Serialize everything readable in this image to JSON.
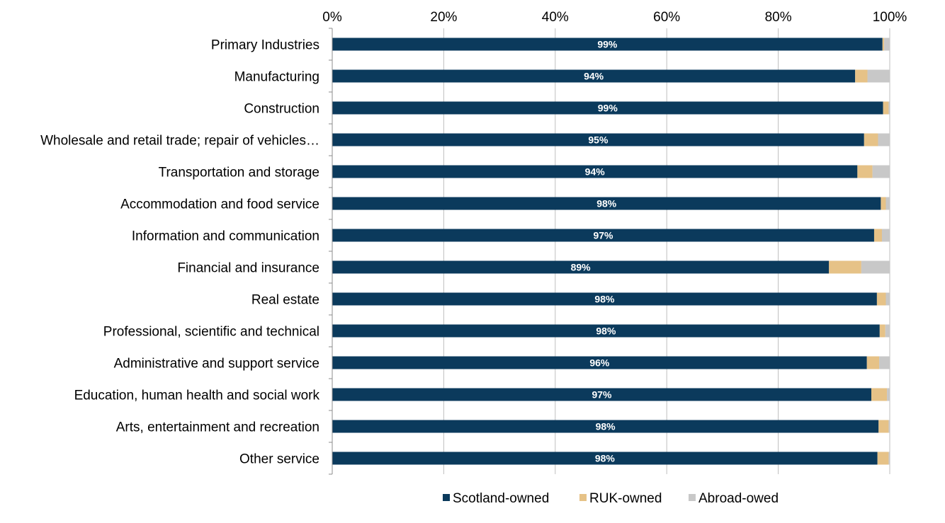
{
  "chart_data": {
    "type": "bar",
    "orientation": "horizontal",
    "stacked": "percent",
    "categories": [
      "Primary Industries",
      "Manufacturing",
      "Construction",
      "Wholesale and retail trade; repair of  vehicles…",
      "Transportation and storage",
      "Accommodation and food service",
      "Information and communication",
      "Financial and insurance",
      "Real estate",
      "Professional, scientific and technical",
      "Administrative and support service",
      "Education, human health and social work",
      "Arts, entertainment and recreation",
      "Other service"
    ],
    "series": [
      {
        "name": "Scotland-owned",
        "color": "#0b3a5c",
        "values": [
          98.7,
          93.8,
          98.8,
          95.4,
          94.2,
          98.4,
          97.2,
          89.1,
          97.7,
          98.2,
          95.9,
          96.7,
          98.0,
          97.8
        ],
        "data_labels": [
          "99%",
          "94%",
          "99%",
          "95%",
          "94%",
          "98%",
          "97%",
          "89%",
          "98%",
          "98%",
          "96%",
          "97%",
          "98%",
          "98%"
        ]
      },
      {
        "name": "RUK-owned",
        "color": "#e6c287",
        "values": [
          0.3,
          2.2,
          1.0,
          2.5,
          2.7,
          0.9,
          1.4,
          5.8,
          1.6,
          1.0,
          2.2,
          2.8,
          1.8,
          2.0
        ]
      },
      {
        "name": "Abroad-owed",
        "color": "#c8c8c8",
        "values": [
          1.0,
          4.0,
          0.2,
          2.1,
          3.1,
          0.7,
          1.4,
          5.1,
          0.7,
          0.8,
          1.9,
          0.5,
          0.2,
          0.2
        ]
      }
    ],
    "x_ticks": [
      "0%",
      "20%",
      "40%",
      "60%",
      "80%",
      "100%"
    ],
    "xlim": [
      0,
      100
    ],
    "x_axis_position": "top",
    "grid": "vertical",
    "legend_position": "bottom"
  }
}
